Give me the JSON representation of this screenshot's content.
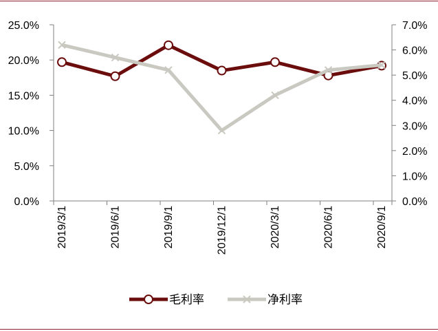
{
  "colors": {
    "rule": "#8b1e2b",
    "axis": "#7f7f7f",
    "series_gross": "#6b0d0d",
    "series_net": "#c9c9c1"
  },
  "chart_data": {
    "type": "line",
    "categories": [
      "2019/3/1",
      "2019/6/1",
      "2019/9/1",
      "2019/12/1",
      "2020/3/1",
      "2020/6/1",
      "2020/9/1"
    ],
    "series": [
      {
        "name": "毛利率",
        "axis": "left",
        "marker": "circle",
        "values": [
          19.7,
          17.7,
          22.1,
          18.5,
          19.7,
          17.8,
          19.2
        ]
      },
      {
        "name": "净利率",
        "axis": "right",
        "marker": "x",
        "values": [
          6.2,
          5.7,
          5.2,
          2.8,
          4.2,
          5.2,
          5.4
        ]
      }
    ],
    "y_left": {
      "ylim": [
        0,
        25
      ],
      "ticks": [
        "0.0%",
        "5.0%",
        "10.0%",
        "15.0%",
        "20.0%",
        "25.0%"
      ]
    },
    "y_right": {
      "ylim": [
        0,
        7
      ],
      "ticks": [
        "0.0%",
        "1.0%",
        "2.0%",
        "3.0%",
        "4.0%",
        "5.0%",
        "6.0%",
        "7.0%"
      ]
    },
    "title": "",
    "xlabel": "",
    "ylabel": "",
    "grid": false,
    "legend": "bottom-center"
  }
}
